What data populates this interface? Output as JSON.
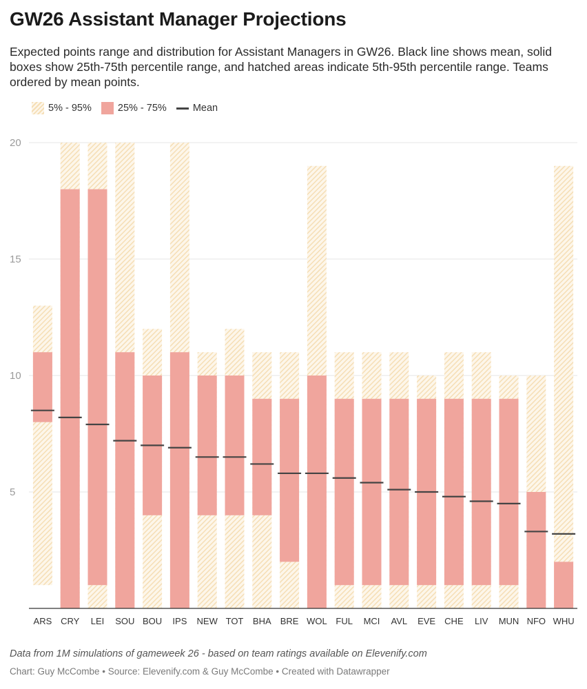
{
  "header": {
    "title": "GW26 Assistant Manager Projections",
    "subtitle": "Expected points range and distribution for Assistant Managers in GW26. Black line shows mean, solid boxes show 25th-75th percentile range, and hatched areas indicate 5th-95th percentile range. Teams ordered by mean points."
  },
  "legend": {
    "hatch_label": "5% - 95%",
    "solid_label": "25% - 75%",
    "mean_label": "Mean"
  },
  "footer": {
    "notes": "Data from 1M simulations of gameweek 26 - based on team ratings available on Elevenify.com",
    "credit": "Chart: Guy McCombe • Source: Elevenify.com & Guy McCombe • Created with Datawrapper"
  },
  "colors": {
    "hatch": "#f5deb5",
    "hatch_bg": "#fdf6ea",
    "iqr": "#f0a59d",
    "mean": "#444444",
    "grid": "#e6e6e6"
  },
  "chart_data": {
    "type": "box-range",
    "title": "GW26 Assistant Manager Projections",
    "xlabel": "",
    "ylabel": "",
    "ylim": [
      0,
      20
    ],
    "yticks": [
      5,
      10,
      15,
      20
    ],
    "grid": true,
    "categories": [
      "ARS",
      "CRY",
      "LEI",
      "SOU",
      "BOU",
      "IPS",
      "NEW",
      "TOT",
      "BHA",
      "BRE",
      "WOL",
      "FUL",
      "MCI",
      "AVL",
      "EVE",
      "CHE",
      "LIV",
      "MUN",
      "NFO",
      "WHU"
    ],
    "series": [
      {
        "name": "p5",
        "values": [
          1,
          0,
          0,
          0,
          0,
          0,
          0,
          0,
          0,
          0,
          0,
          0,
          0,
          0,
          0,
          0,
          0,
          0,
          0,
          0
        ]
      },
      {
        "name": "p25",
        "values": [
          8,
          0,
          1,
          0,
          4,
          0,
          4,
          4,
          4,
          2,
          0,
          1,
          1,
          1,
          1,
          1,
          1,
          1,
          0,
          0
        ]
      },
      {
        "name": "mean",
        "values": [
          8.5,
          8.2,
          7.9,
          7.2,
          7.0,
          6.9,
          6.5,
          6.5,
          6.2,
          5.8,
          5.8,
          5.6,
          5.4,
          5.1,
          5.0,
          4.8,
          4.6,
          4.5,
          3.3,
          3.2
        ]
      },
      {
        "name": "p75",
        "values": [
          11,
          18,
          18,
          11,
          10,
          11,
          10,
          10,
          9,
          9,
          10,
          9,
          9,
          9,
          9,
          9,
          9,
          9,
          5,
          2
        ]
      },
      {
        "name": "p95",
        "values": [
          13,
          20,
          20,
          20,
          12,
          20,
          11,
          12,
          11,
          11,
          19,
          11,
          11,
          11,
          10,
          11,
          11,
          10,
          10,
          19
        ]
      }
    ]
  }
}
